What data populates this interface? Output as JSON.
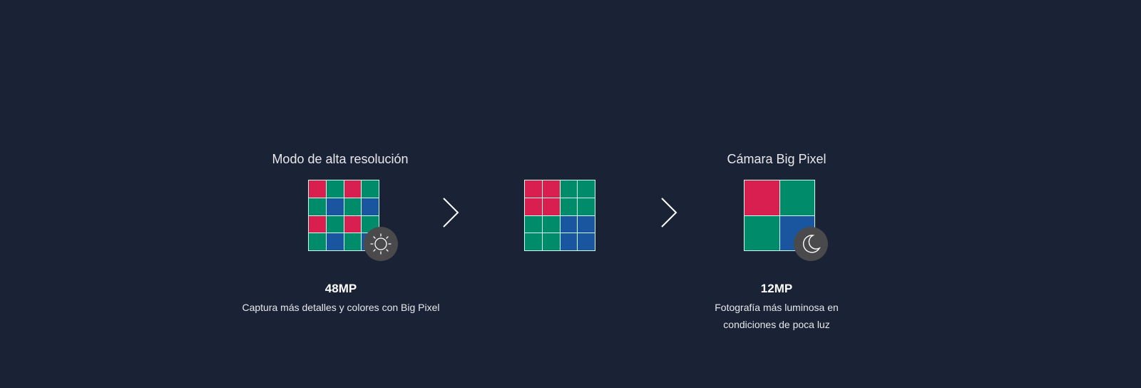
{
  "colors": {
    "background": "#1a2235",
    "red": "#d81f4f",
    "green": "#008c6a",
    "blue": "#1a56a0",
    "badge": "#4a4a4c"
  },
  "left": {
    "title": "Modo de alta resolución",
    "megapixels": "48MP",
    "description": "Captura más detalles y colores con Big Pixel",
    "icon": "sun-icon",
    "cells": [
      "R",
      "G",
      "R",
      "G",
      "G",
      "B",
      "G",
      "B",
      "R",
      "G",
      "R",
      "G",
      "G",
      "B",
      "G",
      "B"
    ]
  },
  "middle": {
    "cells": [
      "R",
      "R",
      "G",
      "G",
      "R",
      "R",
      "G",
      "G",
      "G",
      "G",
      "B",
      "B",
      "G",
      "G",
      "B",
      "B"
    ]
  },
  "right": {
    "title": "Cámara Big Pixel",
    "megapixels": "12MP",
    "description_line1": "Fotografía más luminosa en",
    "description_line2": "condiciones de poca luz",
    "icon": "moon-icon",
    "cells": [
      "R",
      "G",
      "G",
      "B"
    ]
  }
}
